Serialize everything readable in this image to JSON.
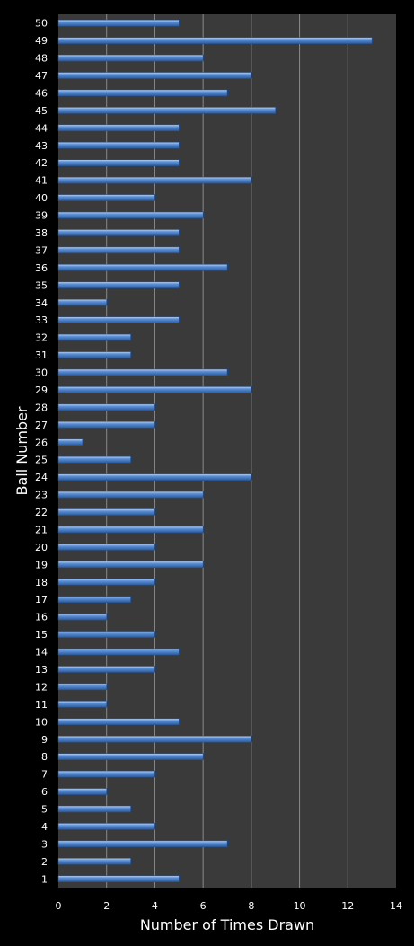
{
  "chart_data": {
    "type": "bar",
    "orientation": "horizontal",
    "title": "",
    "xlabel": "Number of Times Drawn",
    "ylabel": "Ball Number",
    "xlim": [
      0,
      14
    ],
    "x_ticks": [
      0,
      2,
      4,
      6,
      8,
      10,
      12,
      14
    ],
    "grid": "vertical",
    "categories": [
      "1",
      "2",
      "3",
      "4",
      "5",
      "6",
      "7",
      "8",
      "9",
      "10",
      "11",
      "12",
      "13",
      "14",
      "15",
      "16",
      "17",
      "18",
      "19",
      "20",
      "21",
      "22",
      "23",
      "24",
      "25",
      "26",
      "27",
      "28",
      "29",
      "30",
      "31",
      "32",
      "33",
      "34",
      "35",
      "36",
      "37",
      "38",
      "39",
      "40",
      "41",
      "42",
      "43",
      "44",
      "45",
      "46",
      "47",
      "48",
      "49",
      "50"
    ],
    "values": [
      5,
      3,
      7,
      4,
      3,
      2,
      4,
      6,
      8,
      5,
      2,
      2,
      4,
      5,
      4,
      2,
      3,
      4,
      6,
      4,
      6,
      4,
      6,
      8,
      3,
      1,
      4,
      4,
      8,
      7,
      3,
      3,
      5,
      2,
      5,
      7,
      5,
      5,
      6,
      4,
      8,
      5,
      5,
      5,
      9,
      7,
      8,
      6,
      13,
      5
    ],
    "colors": {
      "background": "#000000",
      "plot_area": "#3a3a3a",
      "gridline": "#8a8a8a",
      "bar_fill": "#4f81bd",
      "text": "#ffffff"
    }
  }
}
